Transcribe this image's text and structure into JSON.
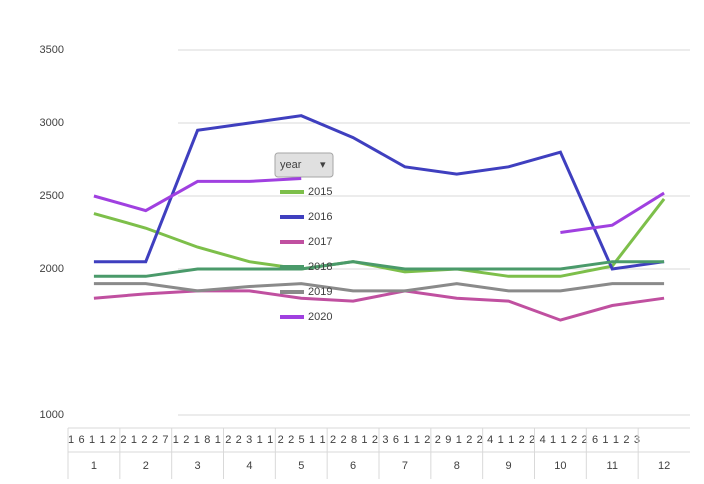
{
  "chart_data": {
    "type": "line",
    "categories": [
      "1",
      "2",
      "3",
      "4",
      "5",
      "6",
      "7",
      "8",
      "9",
      "10",
      "11",
      "12"
    ],
    "day_row": "1 6 1 1 2 2 1 2 2 7 1 2 1 8 1 2 2 3 1 1 2 2 5 1 1 2 2 8 1 2 3 6 1 1 2 2 9 1 2 2 4 1 1 2 2 4 1 1 2 2 6 1 1 2 3",
    "legend_title": "year",
    "series": [
      {
        "name": "2015",
        "color": "#7dbf4a",
        "values": [
          2380,
          2280,
          2150,
          2050,
          2000,
          2050,
          1980,
          2000,
          1950,
          1950,
          2020,
          2480
        ]
      },
      {
        "name": "2016",
        "color": "#3f3fbf",
        "values": [
          2050,
          2050,
          2950,
          3000,
          3050,
          2900,
          2700,
          2650,
          2700,
          2800,
          2000,
          2050
        ]
      },
      {
        "name": "2017",
        "color": "#c050a0",
        "values": [
          1800,
          1830,
          1850,
          1850,
          1800,
          1780,
          1850,
          1800,
          1780,
          1650,
          1750,
          1800
        ]
      },
      {
        "name": "2018",
        "color": "#4a9a6a",
        "values": [
          1950,
          1950,
          2000,
          2000,
          2000,
          2050,
          2000,
          2000,
          2000,
          2000,
          2050,
          2050
        ]
      },
      {
        "name": "2019",
        "color": "#8a8a8a",
        "values": [
          1900,
          1900,
          1850,
          1880,
          1900,
          1850,
          1850,
          1900,
          1850,
          1850,
          1900,
          1900
        ]
      },
      {
        "name": "2020",
        "color": "#a040e0",
        "values": [
          2500,
          2400,
          2600,
          2600,
          2620,
          null,
          null,
          null,
          null,
          2250,
          2300,
          2520
        ]
      }
    ],
    "ylim": [
      1000,
      3500
    ],
    "yticks": [
      1000,
      2000,
      2500,
      3000,
      3500
    ],
    "grid": true
  }
}
